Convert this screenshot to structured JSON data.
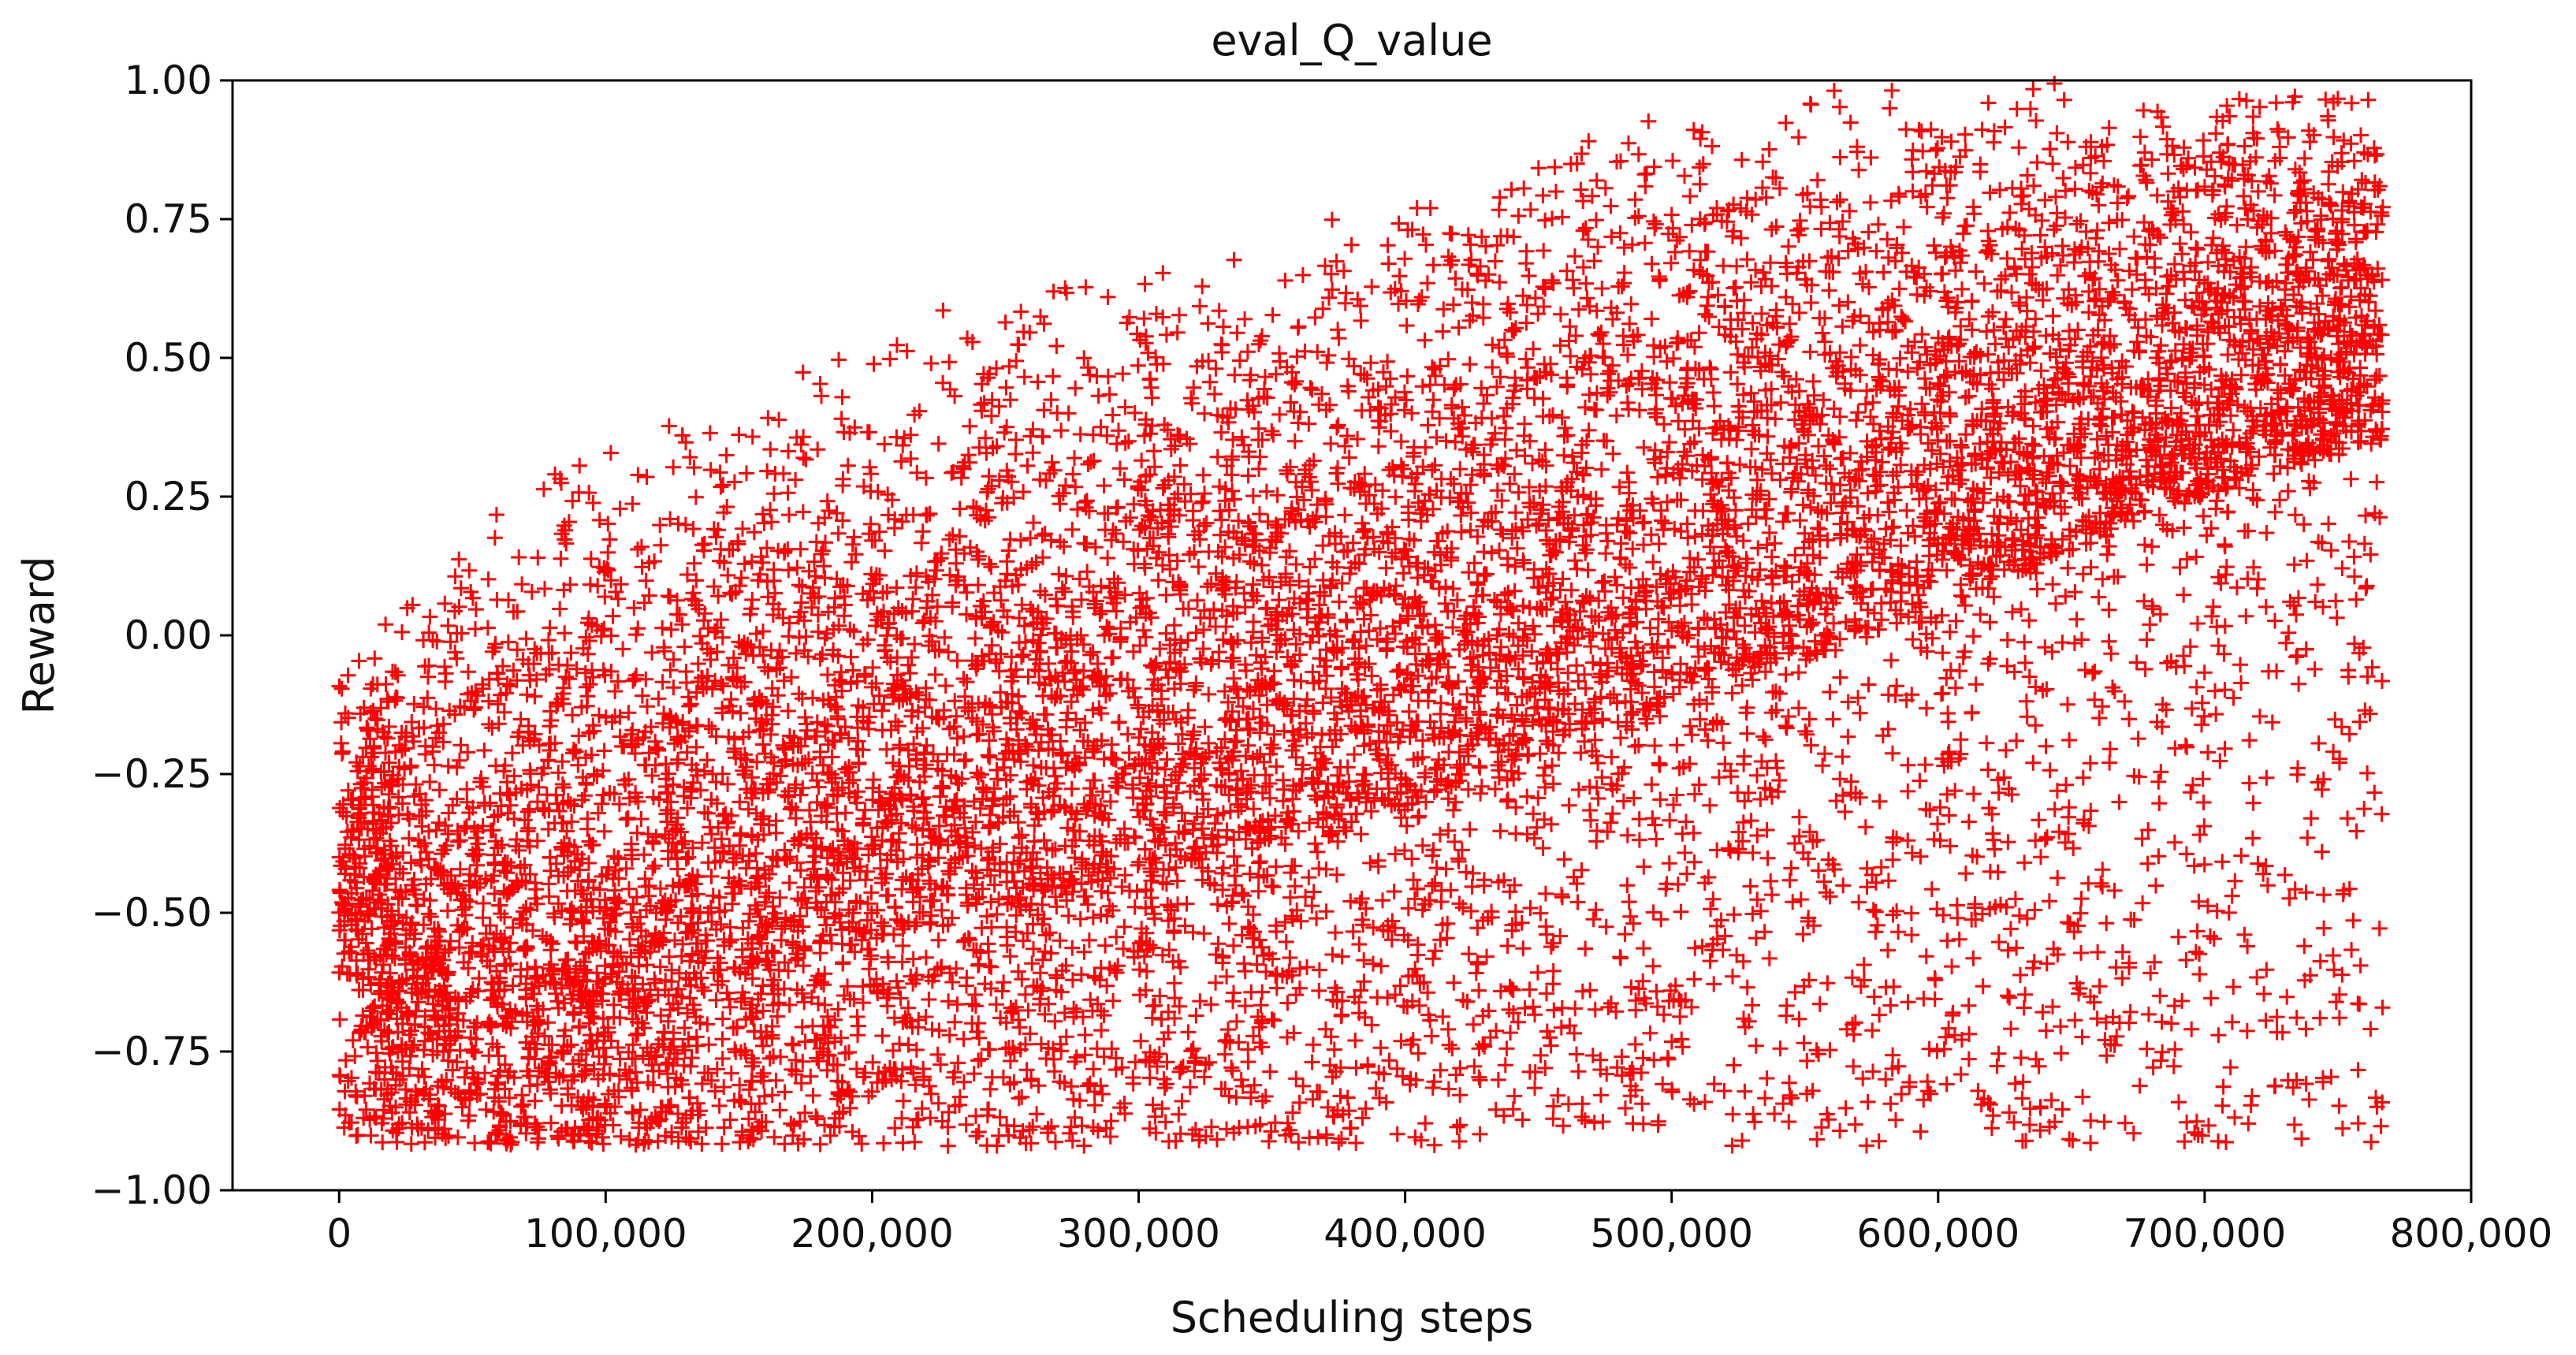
{
  "chart_data": {
    "type": "scatter",
    "title": "eval_Q_value",
    "xlabel": "Scheduling steps",
    "ylabel": "Reward",
    "xlim": [
      -40000,
      800000
    ],
    "ylim": [
      -1.0,
      1.0
    ],
    "x_ticks": [
      0,
      100000,
      200000,
      300000,
      400000,
      500000,
      600000,
      700000,
      800000
    ],
    "x_tick_labels": [
      "0",
      "100,000",
      "200,000",
      "300,000",
      "400,000",
      "500,000",
      "600,000",
      "700,000",
      "800,000"
    ],
    "y_ticks": [
      1.0,
      0.75,
      0.5,
      0.25,
      0.0,
      -0.25,
      -0.5,
      -0.75,
      -1.0
    ],
    "y_tick_labels": [
      "1.00",
      "0.75",
      "0.50",
      "0.25",
      "0.00",
      "−0.25",
      "−0.50",
      "−0.75",
      "−1.00"
    ],
    "grid": false,
    "marker": "+",
    "series": [
      {
        "color": "#ff0000",
        "x_range": [
          0,
          767000
        ],
        "upper_envelope": {
          "x": [
            0,
            25000,
            50000,
            75000,
            100000,
            150000,
            200000,
            250000,
            300000,
            350000,
            400000,
            450000,
            500000,
            550000,
            600000,
            700000,
            767000
          ],
          "y": [
            -0.02,
            0.08,
            0.2,
            0.3,
            0.38,
            0.47,
            0.55,
            0.62,
            0.69,
            0.75,
            0.82,
            0.89,
            0.96,
            1.0,
            1.0,
            1.0,
            1.0
          ]
        },
        "dense_lower_envelope": {
          "x": [
            0,
            25000,
            50000,
            100000,
            150000,
            200000,
            300000,
            400000,
            500000,
            600000,
            700000,
            767000
          ],
          "y": [
            -0.6,
            -0.72,
            -0.72,
            -0.7,
            -0.62,
            -0.55,
            -0.45,
            -0.3,
            -0.15,
            0.05,
            0.25,
            0.35
          ]
        },
        "min_value": -0.92,
        "max_value": 1.0
      }
    ]
  }
}
